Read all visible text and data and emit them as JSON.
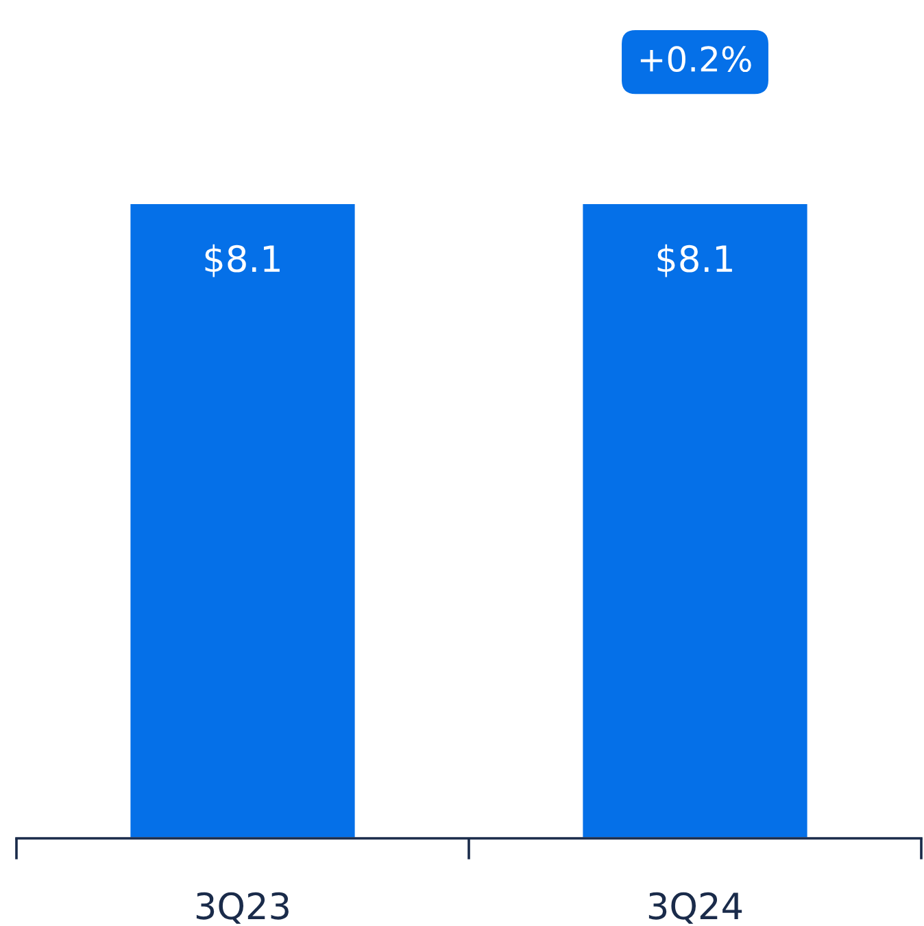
{
  "chart_data": {
    "type": "bar",
    "categories": [
      "3Q23",
      "3Q24"
    ],
    "values": [
      8.1,
      8.1
    ],
    "color": "#0570e8",
    "value_labels": [
      "$8.1",
      "$8.1"
    ],
    "annotations": [
      "+0.2%"
    ],
    "grid": false,
    "legend": false
  }
}
